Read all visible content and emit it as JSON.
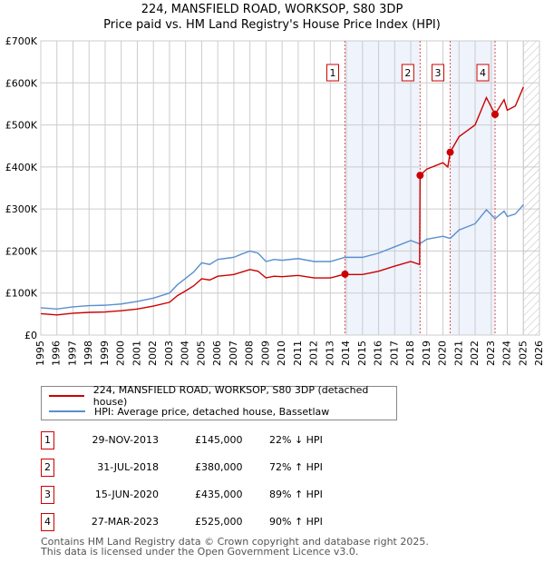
{
  "chart_data": {
    "type": "line",
    "title": "224, MANSFIELD ROAD, WORKSOP, S80 3DP",
    "subtitle": "Price paid vs. HM Land Registry's House Price Index (HPI)",
    "xlim": [
      1995,
      2026
    ],
    "ylim": [
      0,
      700000
    ],
    "yticks": [
      {
        "v": 0,
        "l": "£0"
      },
      {
        "v": 100000,
        "l": "£100K"
      },
      {
        "v": 200000,
        "l": "£200K"
      },
      {
        "v": 300000,
        "l": "£300K"
      },
      {
        "v": 400000,
        "l": "£400K"
      },
      {
        "v": 500000,
        "l": "£500K"
      },
      {
        "v": 600000,
        "l": "£600K"
      },
      {
        "v": 700000,
        "l": "£700K"
      }
    ],
    "xticks": [
      "1995",
      "1996",
      "1997",
      "1998",
      "1999",
      "2000",
      "2001",
      "2002",
      "2003",
      "2004",
      "2005",
      "2006",
      "2007",
      "2008",
      "2009",
      "2010",
      "2011",
      "2012",
      "2013",
      "2014",
      "2015",
      "2016",
      "2017",
      "2018",
      "2019",
      "2020",
      "2021",
      "2022",
      "2023",
      "2024",
      "2025",
      "2026"
    ],
    "grid": true,
    "future_hatch_from": 2025.0,
    "shaded_ranges": [
      [
        2013.91,
        2018.58
      ],
      [
        2020.45,
        2023.24
      ]
    ],
    "series": [
      {
        "name": "224, MANSFIELD ROAD, WORKSOP, S80 3DP (detached house)",
        "color": "#cc0000",
        "x": [
          1995,
          1996,
          1997,
          1998,
          1999,
          2000,
          2001,
          2002,
          2003,
          2003.5,
          2004,
          2004.5,
          2005,
          2005.5,
          2006,
          2007,
          2007.5,
          2008,
          2008.5,
          2009,
          2009.5,
          2010,
          2011,
          2012,
          2013,
          2013.91,
          2014,
          2015,
          2016,
          2017,
          2018,
          2018.55,
          2018.58,
          2019,
          2020,
          2020.3,
          2020.45,
          2021,
          2022,
          2022.7,
          2023.24,
          2023.8,
          2024,
          2024.5,
          2025.0
        ],
        "y": [
          51000,
          48000,
          52000,
          54000,
          55000,
          58000,
          62000,
          69000,
          78000,
          94000,
          105000,
          117000,
          134000,
          131000,
          140000,
          144000,
          150000,
          156000,
          152000,
          136000,
          140000,
          139000,
          142000,
          136000,
          136000,
          145000,
          144000,
          144000,
          152000,
          164000,
          175000,
          168000,
          380000,
          395000,
          410000,
          400000,
          435000,
          472000,
          500000,
          565000,
          525000,
          560000,
          535000,
          545000,
          590000
        ]
      },
      {
        "name": "HPI: Average price, detached house, Bassetlaw",
        "color": "#5b8fd0",
        "x": [
          1995,
          1996,
          1997,
          1998,
          1999,
          2000,
          2001,
          2002,
          2003,
          2003.5,
          2004,
          2004.5,
          2005,
          2005.5,
          2006,
          2007,
          2007.5,
          2008,
          2008.5,
          2009,
          2009.5,
          2010,
          2011,
          2012,
          2013,
          2013.91,
          2014,
          2015,
          2016,
          2017,
          2018,
          2018.55,
          2019,
          2020,
          2020.45,
          2021,
          2022,
          2022.7,
          2023.24,
          2023.8,
          2024,
          2024.5,
          2025.0
        ],
        "y": [
          65000,
          62000,
          67000,
          70000,
          71000,
          74000,
          80000,
          88000,
          100000,
          120000,
          135000,
          150000,
          172000,
          168000,
          180000,
          185000,
          193000,
          200000,
          195000,
          175000,
          180000,
          178000,
          182000,
          175000,
          175000,
          185000,
          185000,
          185000,
          195000,
          210000,
          225000,
          217000,
          228000,
          235000,
          230000,
          250000,
          265000,
          298000,
          277000,
          295000,
          282000,
          288000,
          310000
        ]
      }
    ],
    "sales": [
      {
        "n": "1",
        "x": 2013.91,
        "price": 145000,
        "date": "29-NOV-2013",
        "price_label": "£145,000",
        "hpi": "22% ↓ HPI"
      },
      {
        "n": "2",
        "x": 2018.58,
        "price": 380000,
        "date": "31-JUL-2018",
        "price_label": "£380,000",
        "hpi": "72% ↑ HPI"
      },
      {
        "n": "3",
        "x": 2020.45,
        "price": 435000,
        "date": "15-JUN-2020",
        "price_label": "£435,000",
        "hpi": "89% ↑ HPI"
      },
      {
        "n": "4",
        "x": 2023.24,
        "price": 525000,
        "date": "27-MAR-2023",
        "price_label": "£525,000",
        "hpi": "90% ↑ HPI"
      }
    ],
    "legend_position": "below"
  },
  "footer": {
    "line1": "Contains HM Land Registry data © Crown copyright and database right 2025.",
    "line2": "This data is licensed under the Open Government Licence v3.0."
  }
}
